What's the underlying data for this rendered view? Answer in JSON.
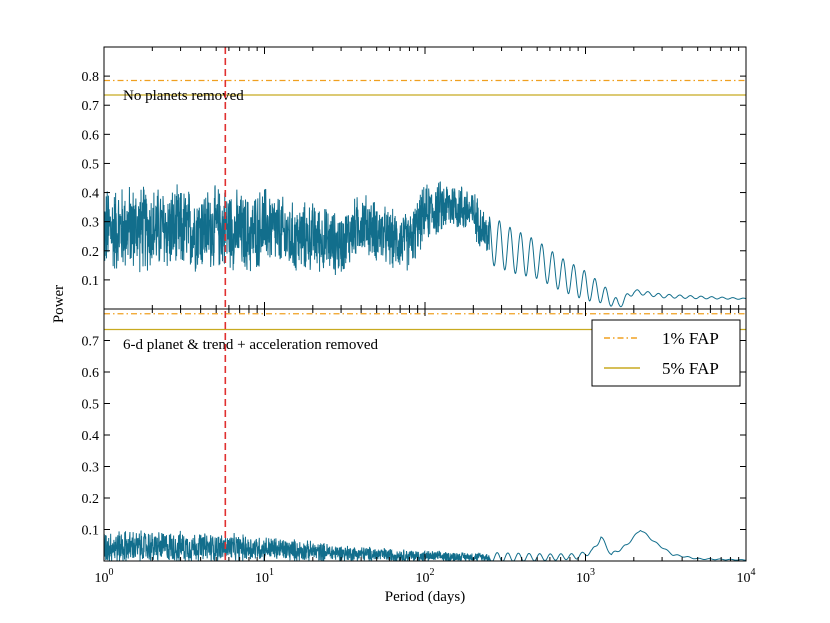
{
  "chart_data": {
    "type": "line",
    "xlabel": "Period (days)",
    "ylabel": "Power",
    "x_scale": "log",
    "xlim": [
      1,
      10000
    ],
    "x_tick_labels": [
      {
        "value": 1,
        "base": "10",
        "exp": "0"
      },
      {
        "value": 10,
        "base": "10",
        "exp": "1"
      },
      {
        "value": 100,
        "base": "10",
        "exp": "2"
      },
      {
        "value": 1000,
        "base": "10",
        "exp": "3"
      },
      {
        "value": 10000,
        "base": "10",
        "exp": "4"
      }
    ],
    "marker": {
      "period": 5.7,
      "style": "dashed",
      "color": "#e03030"
    },
    "legend": {
      "placement": "top-right of lower panel",
      "entries": [
        {
          "label": "1% FAP",
          "style": "dash-dot",
          "color": "#f0a020"
        },
        {
          "label": "5% FAP",
          "style": "solid",
          "color": "#c8aa20"
        }
      ]
    },
    "series_color": "#126e8c",
    "panels": [
      {
        "label": "No planets removed",
        "ylim": [
          0,
          0.9
        ],
        "yticks": [
          "0.1",
          "0.2",
          "0.3",
          "0.4",
          "0.5",
          "0.6",
          "0.7",
          "0.8"
        ],
        "fap_1pct": 0.785,
        "fap_5pct": 0.735,
        "envelope": [
          [
            1,
            0.27
          ],
          [
            1.5,
            0.28
          ],
          [
            3,
            0.27
          ],
          [
            6,
            0.28
          ],
          [
            8,
            0.25
          ],
          [
            10,
            0.29
          ],
          [
            15,
            0.24
          ],
          [
            20,
            0.25
          ],
          [
            30,
            0.22
          ],
          [
            40,
            0.3
          ],
          [
            60,
            0.24
          ],
          [
            80,
            0.23
          ],
          [
            100,
            0.33
          ],
          [
            150,
            0.36
          ],
          [
            200,
            0.33
          ],
          [
            250,
            0.24
          ],
          [
            350,
            0.2
          ],
          [
            500,
            0.17
          ],
          [
            700,
            0.12
          ],
          [
            1000,
            0.08
          ],
          [
            1300,
            0.05
          ],
          [
            1600,
            0.015
          ],
          [
            2000,
            0.06
          ],
          [
            3000,
            0.045
          ],
          [
            5000,
            0.04
          ],
          [
            10000,
            0.035
          ]
        ],
        "amplitude": [
          [
            1,
            0.17
          ],
          [
            5,
            0.16
          ],
          [
            10,
            0.15
          ],
          [
            30,
            0.12
          ],
          [
            100,
            0.11
          ],
          [
            200,
            0.09
          ],
          [
            300,
            0.08
          ],
          [
            600,
            0.06
          ],
          [
            1000,
            0.05
          ],
          [
            1500,
            0.02
          ],
          [
            2000,
            0.008
          ],
          [
            10000,
            0.002
          ]
        ]
      },
      {
        "label": "6-d planet & trend + acceleration removed",
        "ylim": [
          0,
          0.8
        ],
        "yticks": [
          "0.1",
          "0.2",
          "0.3",
          "0.4",
          "0.5",
          "0.6",
          "0.7"
        ],
        "fap_1pct": 0.785,
        "fap_5pct": 0.735,
        "envelope": [
          [
            1,
            0.045
          ],
          [
            3,
            0.045
          ],
          [
            10,
            0.04
          ],
          [
            30,
            0.025
          ],
          [
            100,
            0.015
          ],
          [
            300,
            0.012
          ],
          [
            600,
            0.012
          ],
          [
            900,
            0.015
          ],
          [
            1100,
            0.03
          ],
          [
            1250,
            0.075
          ],
          [
            1450,
            0.02
          ],
          [
            1800,
            0.05
          ],
          [
            2200,
            0.1
          ],
          [
            2700,
            0.06
          ],
          [
            3500,
            0.02
          ],
          [
            5000,
            0.007
          ],
          [
            10000,
            0.003
          ]
        ],
        "amplitude": [
          [
            1,
            0.06
          ],
          [
            3,
            0.055
          ],
          [
            10,
            0.045
          ],
          [
            30,
            0.03
          ],
          [
            100,
            0.02
          ],
          [
            300,
            0.014
          ],
          [
            1000,
            0.008
          ],
          [
            2000,
            0.003
          ],
          [
            10000,
            0.001
          ]
        ]
      }
    ]
  }
}
